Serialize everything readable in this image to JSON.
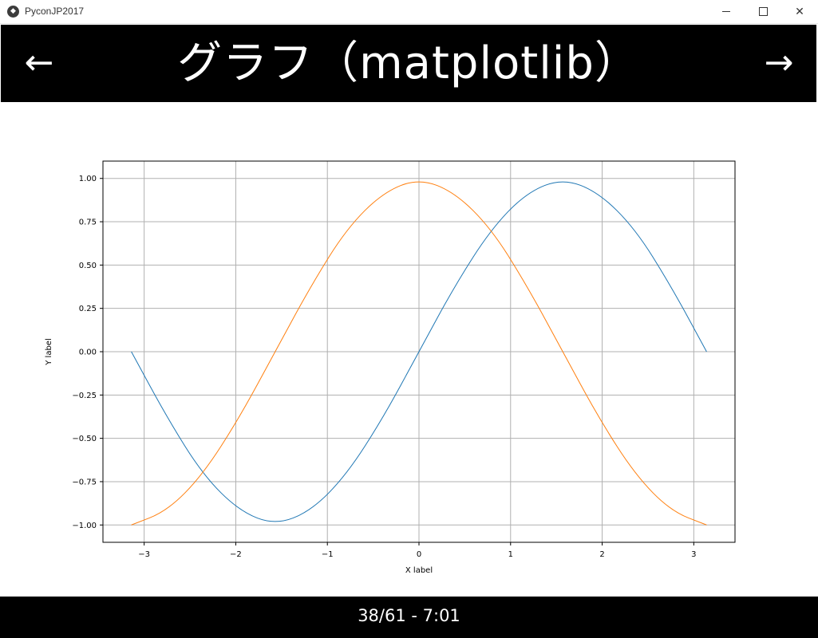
{
  "window": {
    "title": "PyconJP2017",
    "app_icon": "kivy-logo-icon",
    "min_icon": "minimize-icon",
    "max_icon": "maximize-icon",
    "close_icon": "close-icon",
    "close_glyph": "✕"
  },
  "header": {
    "title": "グラフ（matplotlib）",
    "prev_glyph": "←",
    "next_glyph": "→",
    "prev_icon": "arrow-left-icon",
    "next_icon": "arrow-right-icon",
    "background": "#000000",
    "text_color": "#ffffff"
  },
  "footer": {
    "status": "38/61 - 7:01"
  },
  "chart_data": {
    "type": "line",
    "xlabel": "X label",
    "ylabel": "Y label",
    "xlim": [
      -3.45,
      3.45
    ],
    "ylim": [
      -1.1,
      1.1
    ],
    "xticks": [
      -3,
      -2,
      -1,
      0,
      1,
      2,
      3
    ],
    "xtick_labels": [
      "−3",
      "−2",
      "−1",
      "0",
      "1",
      "2",
      "3"
    ],
    "yticks": [
      -1.0,
      -0.75,
      -0.5,
      -0.25,
      0.0,
      0.25,
      0.5,
      0.75,
      1.0
    ],
    "ytick_labels": [
      "−1.00",
      "−0.75",
      "−0.50",
      "−0.25",
      "0.00",
      "0.25",
      "0.50",
      "0.75",
      "1.00"
    ],
    "grid": true,
    "series": [
      {
        "color": "#1f77b4",
        "x": [
          -3.14,
          -2.75,
          -2.36,
          -1.96,
          -1.57,
          -1.18,
          -0.79,
          -0.39,
          0.0,
          0.39,
          0.79,
          1.18,
          1.57,
          1.96,
          2.36,
          2.75,
          3.14
        ],
        "y": [
          0.0,
          -0.38,
          -0.71,
          -0.92,
          -1.0,
          -0.92,
          -0.71,
          -0.38,
          0.0,
          0.38,
          0.71,
          0.92,
          1.0,
          0.92,
          0.71,
          0.38,
          0.0
        ]
      },
      {
        "color": "#ff7f0e",
        "x": [
          -3.14,
          -2.75,
          -2.36,
          -1.96,
          -1.57,
          -1.18,
          -0.79,
          -0.39,
          0.0,
          0.39,
          0.79,
          1.18,
          1.57,
          1.96,
          2.36,
          2.75,
          3.14
        ],
        "y": [
          -1.0,
          -0.92,
          -0.71,
          -0.38,
          0.0,
          0.38,
          0.71,
          0.92,
          1.0,
          0.92,
          0.71,
          0.38,
          0.0,
          -0.38,
          -0.71,
          -0.92,
          -1.0
        ]
      }
    ]
  }
}
